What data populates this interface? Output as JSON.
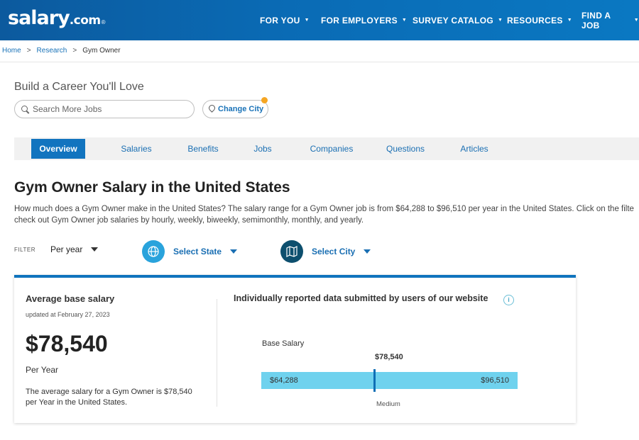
{
  "header": {
    "logo_main": "salary",
    "logo_tld": ".com",
    "logo_reg": "®",
    "nav": [
      {
        "label": "FOR YOU"
      },
      {
        "label": "FOR EMPLOYERS"
      },
      {
        "label": "SURVEY CATALOG"
      },
      {
        "label": "RESOURCES"
      },
      {
        "label": "FIND A JOB"
      }
    ]
  },
  "breadcrumb": [
    "Home",
    "Research",
    "Gym Owner"
  ],
  "tagline": "Build a Career You'll Love",
  "search": {
    "placeholder": "Search More Jobs"
  },
  "change_city": "Change City",
  "tabs": [
    "Overview",
    "Salaries",
    "Benefits",
    "Jobs",
    "Companies",
    "Questions",
    "Articles"
  ],
  "title": "Gym Owner Salary in the United States",
  "description": [
    "How much does a Gym Owner make in the United States? The salary range for a Gym Owner job is from $64,288 to $96,510 per year in the United States. Click on the filte",
    "check out Gym Owner job salaries by hourly, weekly, biweekly, semimonthly, monthly, and yearly."
  ],
  "filter": {
    "label": "FILTER",
    "period": "Per year",
    "state": "Select State",
    "city": "Select City"
  },
  "card": {
    "avg_label": "Average base salary",
    "updated": "updated at February 27, 2023",
    "amount": "$78,540",
    "per": "Per Year",
    "summary": "The average salary for a Gym Owner is $78,540 per Year in the United States.",
    "reported_title": "Individually reported data submitted by users of our website",
    "info_icon": "i",
    "base_label": "Base Salary",
    "median": "$78,540",
    "low": "$64,288",
    "high": "$96,510",
    "medium_label": "Medium",
    "range": {
      "low": 64288,
      "median": 78540,
      "high": 96510
    }
  },
  "colors": {
    "header": "#0a6bb5",
    "accent": "#1274bf",
    "bar": "#6fd2ee",
    "notify_dot": "#f5a623"
  }
}
